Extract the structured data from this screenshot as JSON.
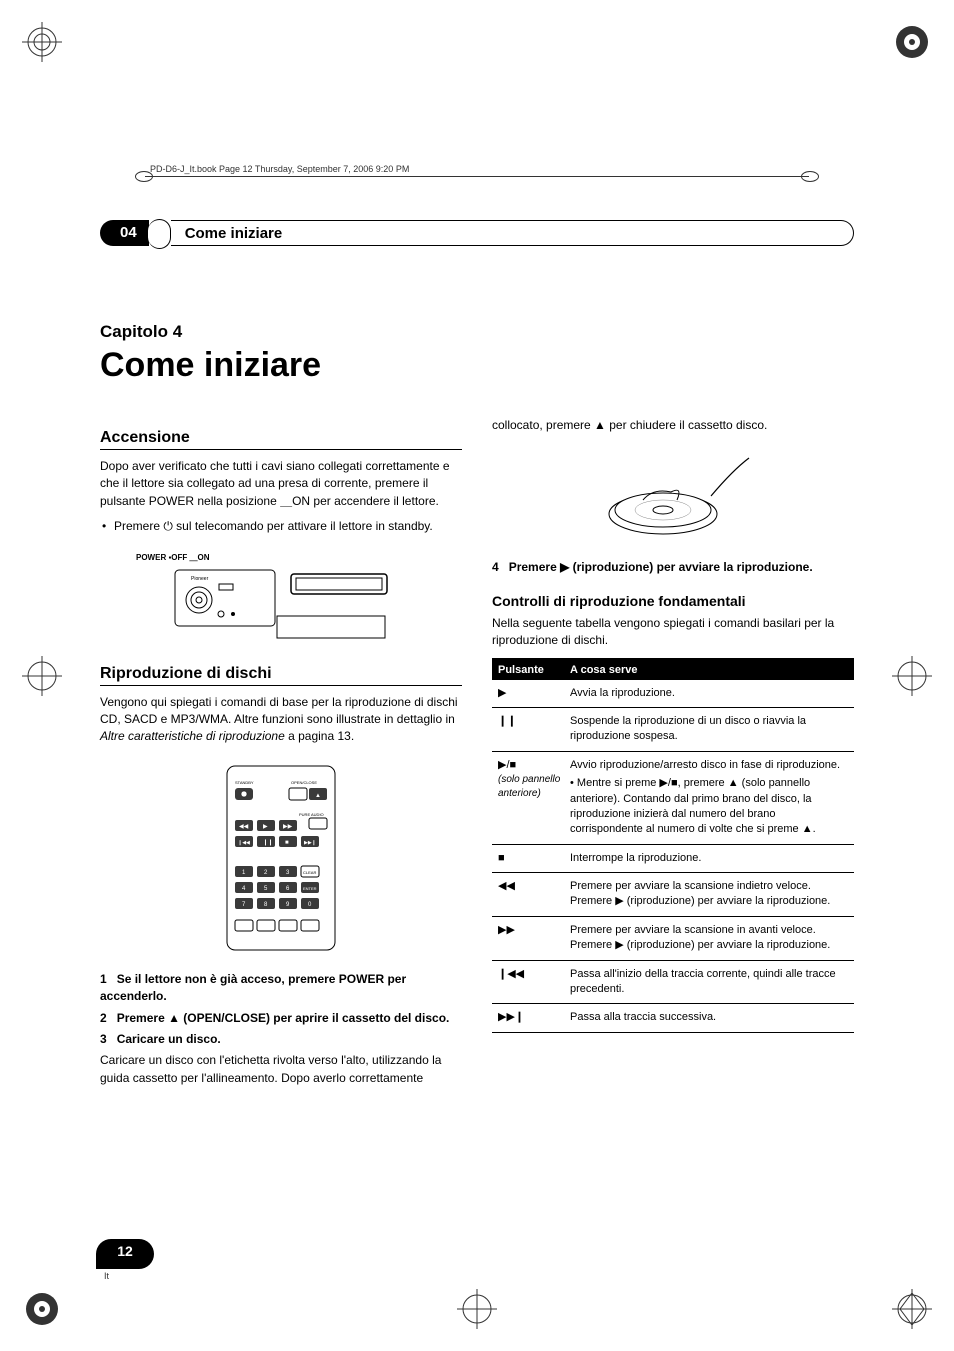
{
  "header_text": "PD-D6-J_It.book  Page 12  Thursday, September 7, 2006  9:20 PM",
  "section": {
    "number": "04",
    "title": "Come iniziare"
  },
  "chapter": {
    "label": "Capitolo 4",
    "title": "Come iniziare"
  },
  "left": {
    "h2_accensione": "Accensione",
    "p_accensione": "Dopo aver verificato che tutti i cavi siano collegati correttamente e che il lettore sia collegato ad una presa di corrente, premere il pulsante POWER nella posizione ＿ON per accendere il lettore.",
    "bullet1": "Premere ⏻ sul telecomando per attivare il lettore in standby.",
    "player_label": "POWER ▪OFF ＿ON",
    "h2_riproduzione": "Riproduzione di dischi",
    "p_riproduzione": "Vengono qui spiegati i comandi di base per la riproduzione di dischi CD, SACD e MP3/WMA. Altre funzioni sono illustrate in dettaglio in ",
    "p_riproduzione_link": "Altre caratteristiche di riproduzione",
    "p_riproduzione_page": " a pagina 13.",
    "remote_labels": {
      "standby": "STANDBY",
      "openclose": "OPEN/CLOSE",
      "pureaudio": "PURE AUDIO",
      "clear": "CLEAR",
      "enter": "ENTER",
      "b1": "1",
      "b2": "2",
      "b3": "3",
      "b4": "4",
      "b5": "5",
      "b6": "6",
      "b7": "7",
      "b8": "8",
      "b9": "9",
      "b0": "0"
    },
    "step1_num": "1",
    "step1": "Se il lettore non è già acceso, premere POWER per accenderlo.",
    "step2_num": "2",
    "step2": "Premere ▲ (OPEN/CLOSE) per aprire il cassetto del disco.",
    "step3_num": "3",
    "step3": "Caricare un disco.",
    "p_caricare": "Caricare un disco con l'etichetta rivolta verso l'alto, utilizzando la guida cassetto per l'allineamento. Dopo averlo correttamente"
  },
  "right": {
    "p_top": "collocato, premere ▲ per chiudere il cassetto disco.",
    "step4_num": "4",
    "step4": "Premere ▶ (riproduzione) per avviare la riproduzione.",
    "h3_controlli": "Controlli di riproduzione fondamentali",
    "p_controlli": "Nella seguente tabella vengono spiegati i comandi basilari per la riproduzione di dischi.",
    "table": {
      "head_col1": "Pulsante",
      "head_col2": "A cosa serve",
      "rows": [
        {
          "c1": "▶",
          "c2": "Avvia la riproduzione."
        },
        {
          "c1": "❙❙",
          "c2": "Sospende la riproduzione di un disco o riavvia la riproduzione sospesa."
        },
        {
          "c1": "▶/■",
          "c1sub": "(solo pannello anteriore)",
          "c2": "Avvio riproduzione/arresto disco in fase di riproduzione.",
          "c2sub": "• Mentre si preme ▶/■, premere ▲ (solo pannello anteriore). Contando dal primo brano del disco, la riproduzione inizierà dal numero del brano corrispondente al numero di volte che si preme ▲."
        },
        {
          "c1": "■",
          "c2": "Interrompe la riproduzione."
        },
        {
          "c1": "◀◀",
          "c2": "Premere per avviare la scansione indietro veloce. Premere ▶ (riproduzione) per avviare la riproduzione."
        },
        {
          "c1": "▶▶",
          "c2": "Premere per avviare la scansione in avanti veloce. Premere ▶ (riproduzione) per avviare la riproduzione."
        },
        {
          "c1": "❙◀◀",
          "c2": "Passa all'inizio della traccia corrente, quindi alle tracce precedenti."
        },
        {
          "c1": "▶▶❙",
          "c2": "Passa alla traccia successiva."
        }
      ]
    }
  },
  "page_number": "12",
  "page_lang": "It",
  "colors": {
    "black": "#000000",
    "white": "#ffffff",
    "gray": "#333333"
  }
}
